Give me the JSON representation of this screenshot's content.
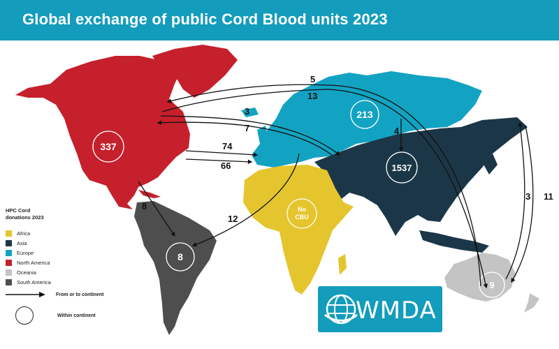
{
  "title": "Global exchange of public Cord Blood units 2023",
  "colors": {
    "africa": "#e5c52e",
    "asia": "#1b3747",
    "europe": "#13a3c2",
    "north_america": "#c5202c",
    "oceania": "#c4c4c4",
    "south_america": "#4e4e4e",
    "title_bar": "#139cbc"
  },
  "within_continent": {
    "north_america": "337",
    "europe": "213",
    "asia": "1537",
    "south_america": "8",
    "oceania": "9",
    "africa_line1": "No",
    "africa_line2": "CBU"
  },
  "flows": [
    {
      "from": "Asia",
      "to": "North America",
      "label": "5"
    },
    {
      "from": "North America",
      "to": "Oceania",
      "label": "13"
    },
    {
      "from": "North America",
      "to": "Asia",
      "label": "3"
    },
    {
      "from": "Asia",
      "to": "North America",
      "label": "7"
    },
    {
      "from": "North America",
      "to": "Europe",
      "label": "74"
    },
    {
      "from": "Europe",
      "to": "North America",
      "label": "66"
    },
    {
      "from": "Europe",
      "to": "Asia",
      "label": "4"
    },
    {
      "from": "Europe",
      "to": "South America",
      "label": "12"
    },
    {
      "from": "North America",
      "to": "South America",
      "label": "8"
    },
    {
      "from": "Oceania",
      "to": "Asia",
      "label": "3"
    },
    {
      "from": "Asia",
      "to": "Oceania",
      "label": "11"
    }
  ],
  "legend": {
    "title": "HPC  Cord donations 2023",
    "items": [
      "Africa",
      "Asia",
      "Europe",
      "North America",
      "Oceania",
      "South America"
    ],
    "arrow_label": "From or to  continent",
    "circle_label": "Within continent"
  },
  "logo": {
    "text": "WMDA"
  }
}
